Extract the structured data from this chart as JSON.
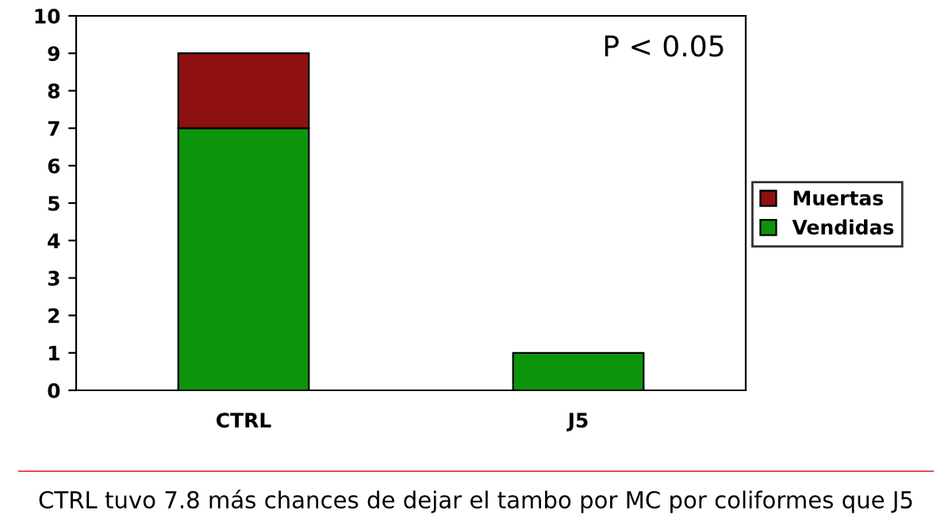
{
  "chart_data": {
    "type": "bar",
    "stacked": true,
    "categories": [
      "CTRL",
      "J5"
    ],
    "series": [
      {
        "name": "Vendidas",
        "color": "#0c940c",
        "values": [
          7,
          1
        ]
      },
      {
        "name": "Muertas",
        "color": "#8e1010",
        "values": [
          2,
          null
        ]
      }
    ],
    "ylim": [
      0,
      10
    ],
    "yticks": [
      0,
      1,
      2,
      3,
      4,
      5,
      6,
      7,
      8,
      9,
      10
    ],
    "grid": false,
    "legend": "right",
    "annotations": [
      {
        "text": "P < 0.05"
      },
      {
        "text": "CTRL tuvo 7.8 más chances de dejar el tambo por MC por coliformes que J5"
      }
    ]
  }
}
